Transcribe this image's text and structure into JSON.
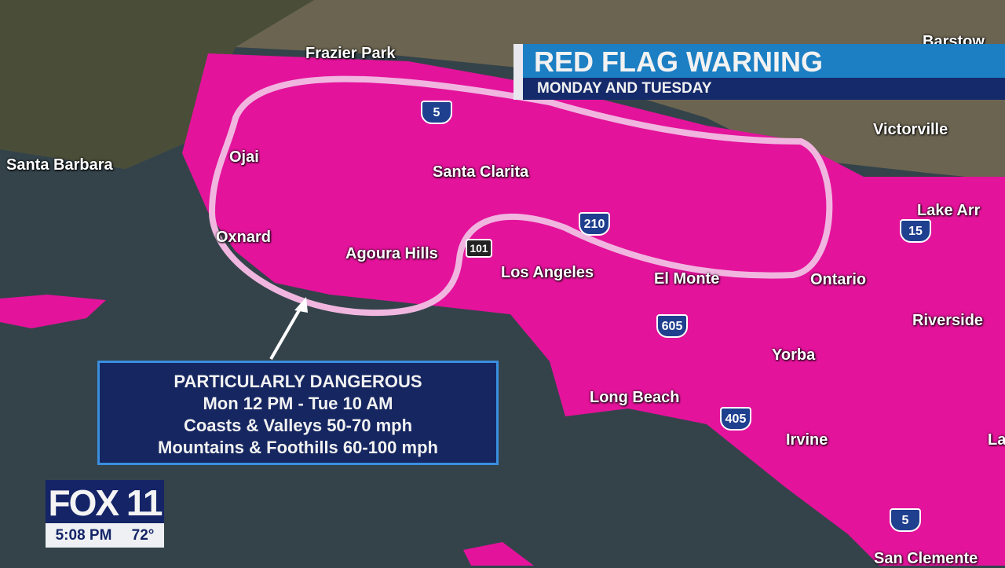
{
  "colors": {
    "warning_area": "#e4139b",
    "outline": "#f0b6e0",
    "ocean": "#34434a",
    "banner_top": "#1c7fc3",
    "banner_bottom": "#152a6a",
    "info_box": "#162660",
    "info_border": "#3a8fe0"
  },
  "banner": {
    "title": "RED FLAG WARNING",
    "subtitle": "MONDAY AND TUESDAY"
  },
  "info": {
    "lines": [
      "PARTICULARLY DANGEROUS",
      "Mon 12 PM - Tue 10 AM",
      "Coasts & Valleys 50-70 mph",
      "Mountains & Foothills 60-100 mph"
    ]
  },
  "logo": {
    "brand": "FOX 11",
    "time": "5:08 PM",
    "temp": "72°"
  },
  "cities": [
    "Frazier Park",
    "Barstow",
    "Victorville",
    "Santa Barbara",
    "Ojai",
    "Santa Clarita",
    "Lake Arr",
    "Oxnard",
    "Agoura Hills",
    "Los Angeles",
    "El Monte",
    "Ontario",
    "Riverside",
    "Yorba",
    "Long Beach",
    "Irvine",
    "Lak",
    "San Clemente"
  ],
  "shields": [
    "5",
    "210",
    "101",
    "15",
    "605",
    "405",
    "5"
  ]
}
